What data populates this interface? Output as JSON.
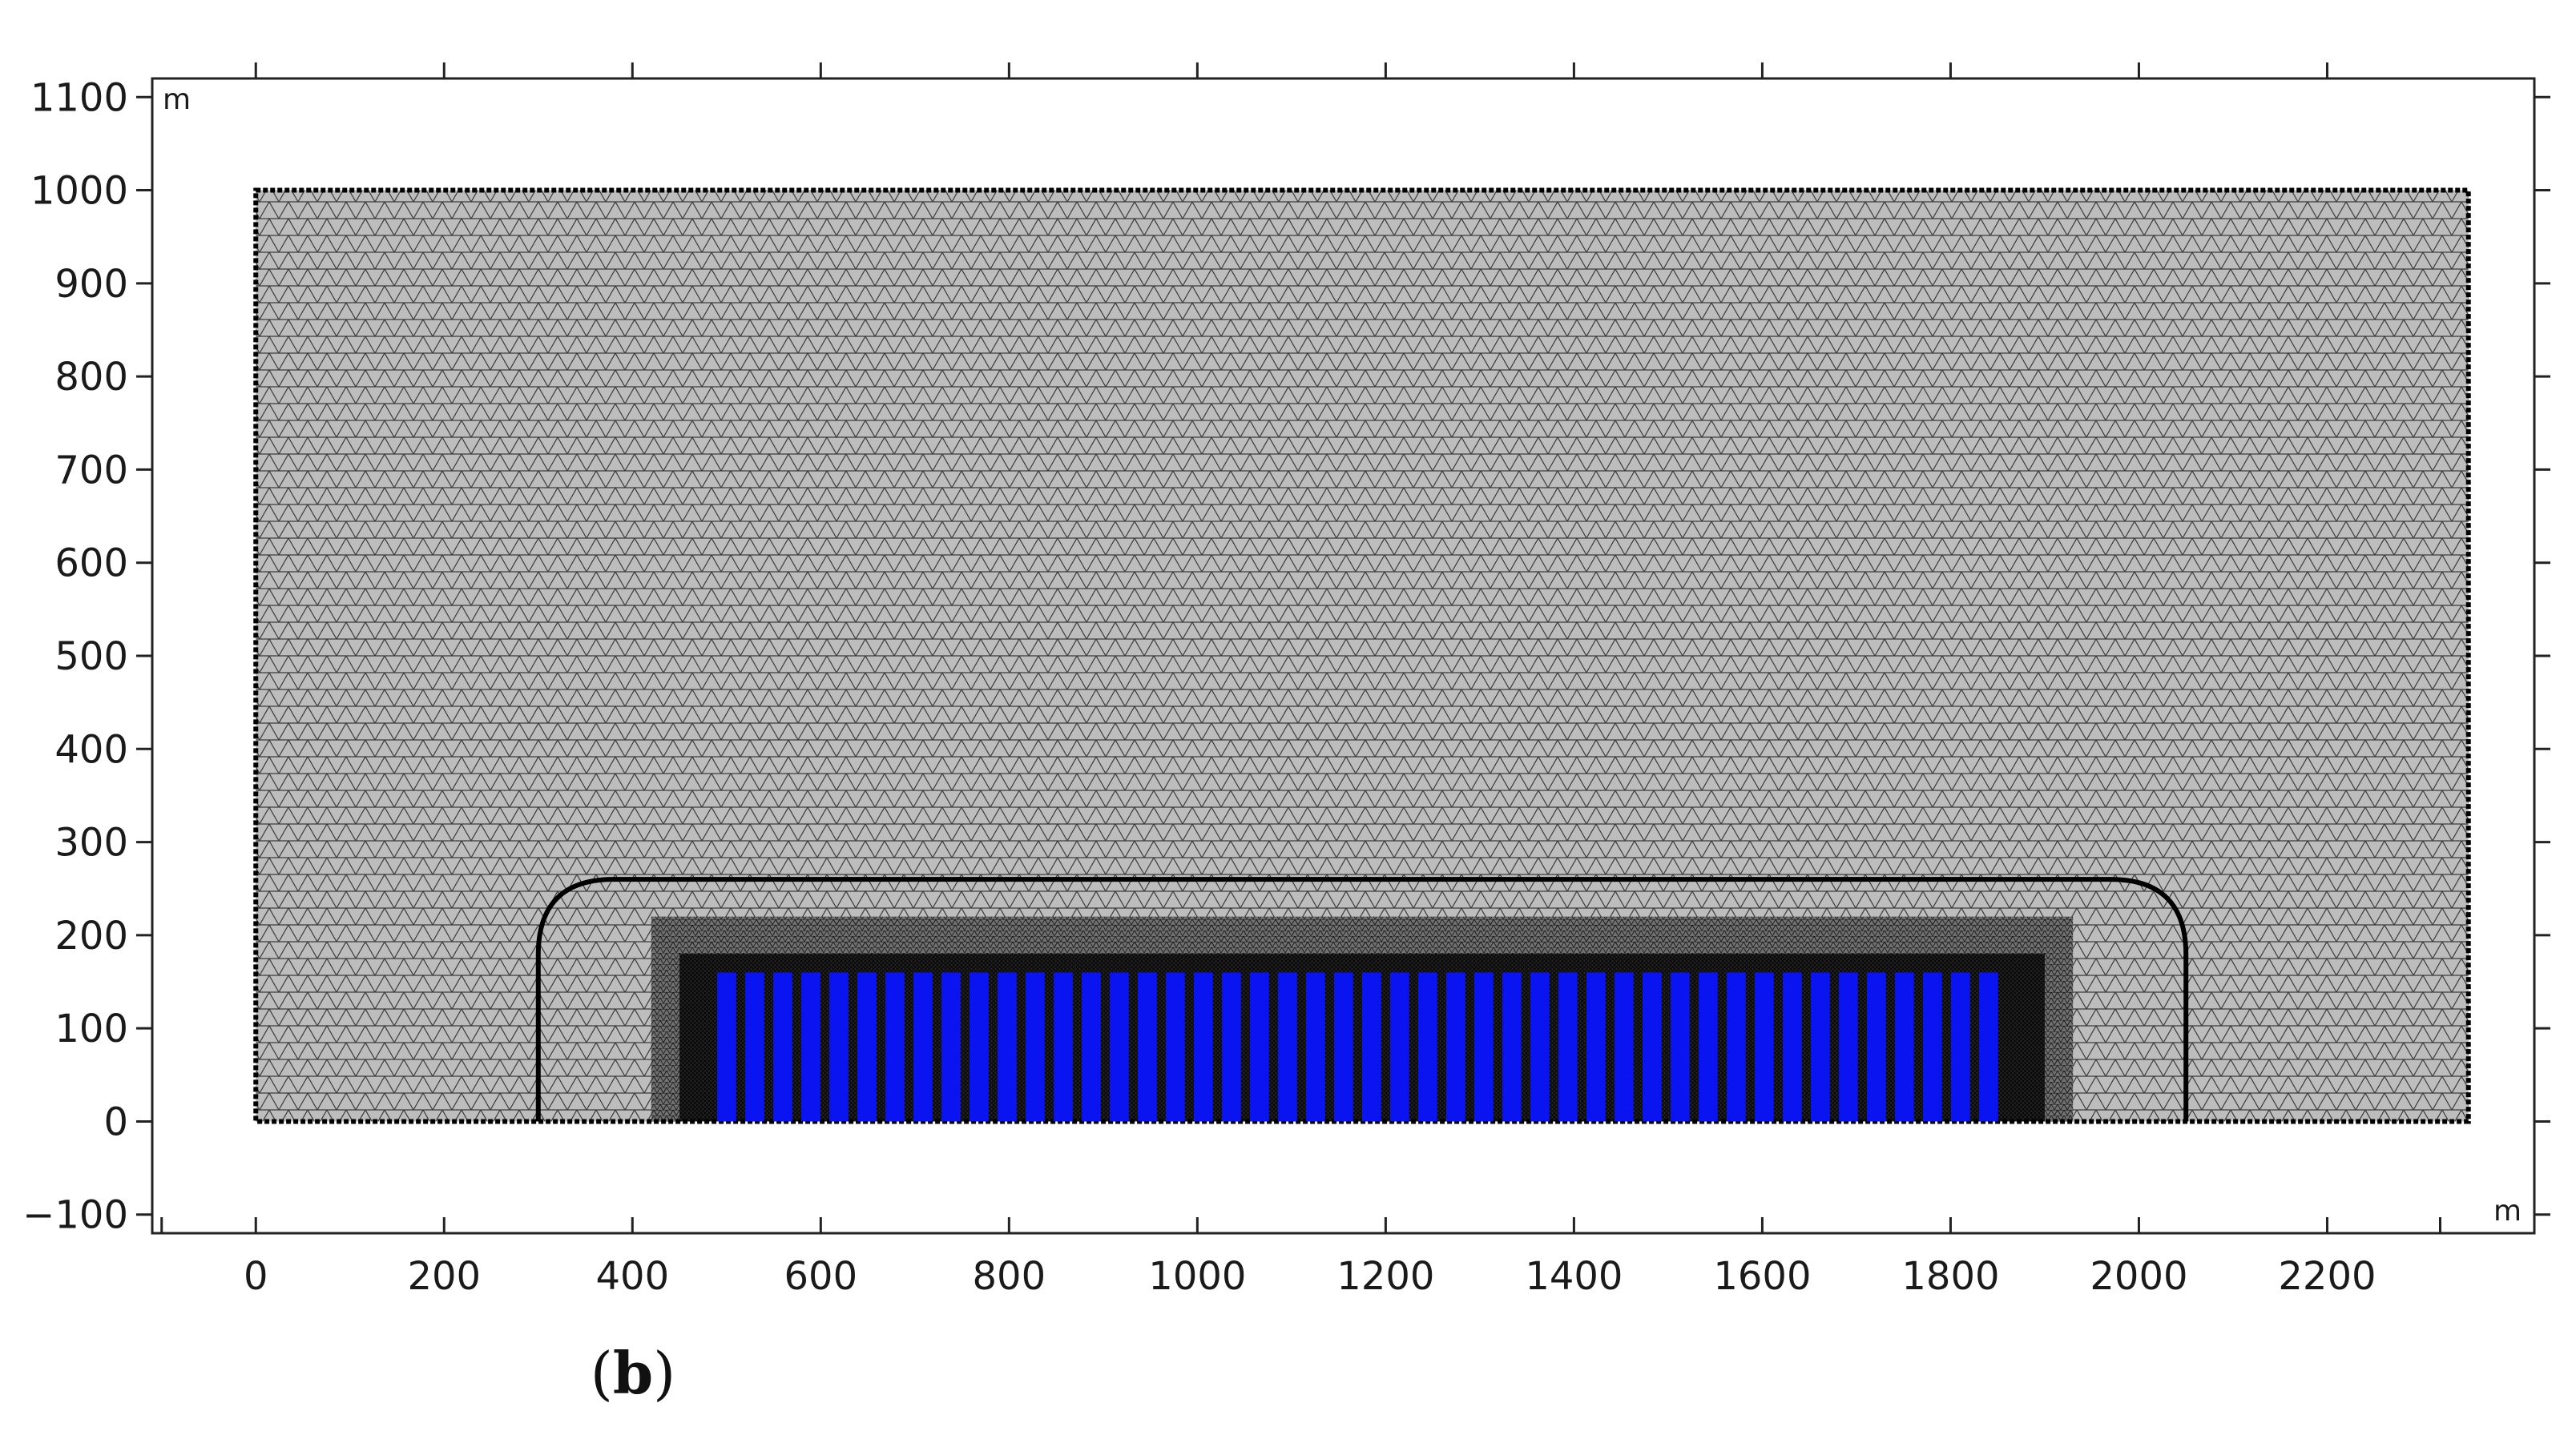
{
  "axes": {
    "x_unit": "m",
    "y_unit": "m",
    "x_ticks": [
      "0",
      "200",
      "400",
      "600",
      "800",
      "1000",
      "1200",
      "1400",
      "1600",
      "1800",
      "2000",
      "2200"
    ],
    "y_ticks": [
      "−100",
      "0",
      "100",
      "200",
      "300",
      "400",
      "500",
      "600",
      "700",
      "800",
      "900",
      "1000",
      "1100"
    ],
    "xlim": [
      -110,
      2420
    ],
    "ylim": [
      -120,
      1120
    ]
  },
  "model": {
    "domain": {
      "x": [
        0,
        2350
      ],
      "y": [
        0,
        1000
      ]
    },
    "inner_boundary": {
      "x": [
        300,
        2050
      ],
      "y": [
        0,
        260
      ],
      "corner_radius": 80
    },
    "array_region": {
      "x": [
        490,
        1860
      ],
      "y": [
        0,
        160
      ]
    },
    "mesh_color": "#b9b9b9",
    "line_color": "#000000",
    "element_color": "#0a14f0",
    "element_count": 46
  },
  "caption": {
    "open": "(",
    "letter": "b",
    "close": ")"
  }
}
